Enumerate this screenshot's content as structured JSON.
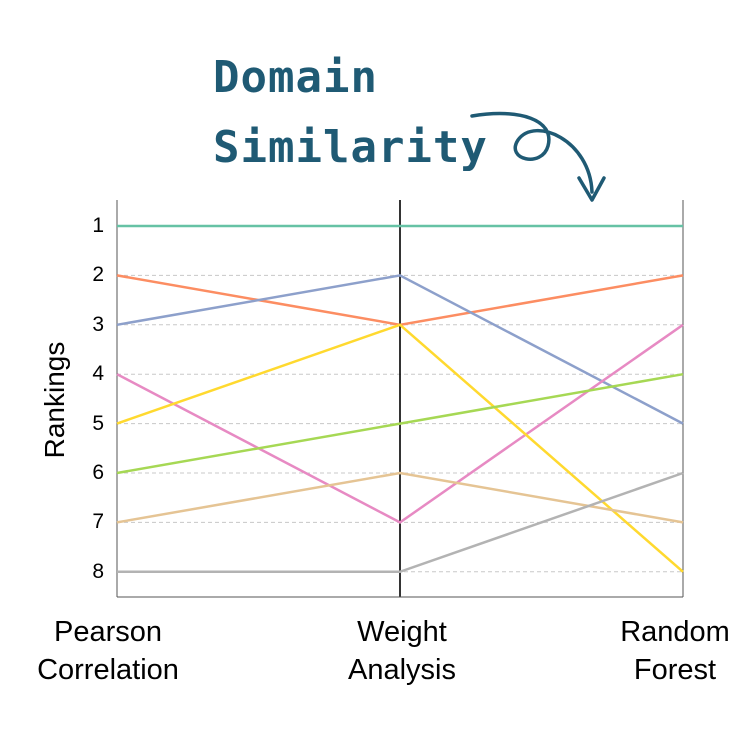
{
  "title": {
    "line1": "Domain",
    "line2": "Similarity",
    "color": "#1f5a74"
  },
  "chart_data": {
    "type": "line",
    "chart_kind": "parallel-coordinates ranking (bump chart)",
    "ylabel": "Rankings",
    "y_ticks": [
      "1",
      "2",
      "3",
      "4",
      "5",
      "6",
      "7",
      "8"
    ],
    "ylim": [
      1,
      8
    ],
    "y_inverted": true,
    "grid": "dashed horizontal at each rank",
    "categories": [
      [
        "Pearson",
        "Correlation"
      ],
      [
        "Weight",
        "Analysis"
      ],
      [
        "Random",
        "Forest"
      ]
    ],
    "series": [
      {
        "color": "#66c2a5",
        "values": [
          1,
          1,
          1
        ]
      },
      {
        "color": "#fc8d62",
        "values": [
          2,
          3,
          2
        ]
      },
      {
        "color": "#8da0cb",
        "values": [
          3,
          2,
          5
        ]
      },
      {
        "color": "#e78ac3",
        "values": [
          4,
          7,
          3
        ]
      },
      {
        "color": "#ffd92f",
        "values": [
          5,
          3,
          8
        ]
      },
      {
        "color": "#a6d854",
        "values": [
          6,
          5,
          4
        ]
      },
      {
        "color": "#e5c494",
        "values": [
          7,
          6,
          7
        ]
      },
      {
        "color": "#b3b3b3",
        "values": [
          8,
          8,
          6
        ]
      }
    ]
  }
}
